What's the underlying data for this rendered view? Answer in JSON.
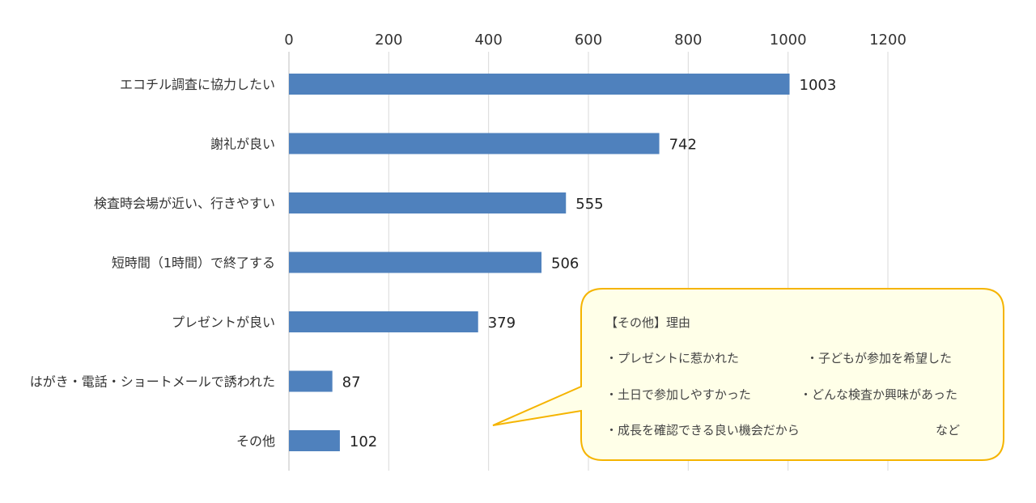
{
  "chart_data": {
    "type": "bar",
    "orientation": "horizontal",
    "categories": [
      "エコチル調査に協力したい",
      "謝礼が良い",
      "検査時会場が近い、行きやすい",
      "短時間（1時間）で終了する",
      "プレゼントが良い",
      "はがき・電話・ショートメールで誘われた",
      "その他"
    ],
    "values": [
      1003,
      742,
      555,
      506,
      379,
      87,
      102
    ],
    "xlim": [
      0,
      1200
    ],
    "xticks": [
      "0",
      "200",
      "400",
      "600",
      "800",
      "1000",
      "1200"
    ],
    "x_axis_position": "top",
    "grid": true,
    "bar_color": "#4f81bd"
  },
  "callout": {
    "title": "【その他】理由",
    "items": [
      "・プレゼントに惹かれた",
      "・子どもが参加を希望した",
      "・土日で参加しやすかった",
      "・どんな検査か興味があった",
      "・成長を確認できる良い機会だから",
      "など"
    ],
    "border_color": "#f5b400",
    "fill_color": "#ffffe8"
  }
}
